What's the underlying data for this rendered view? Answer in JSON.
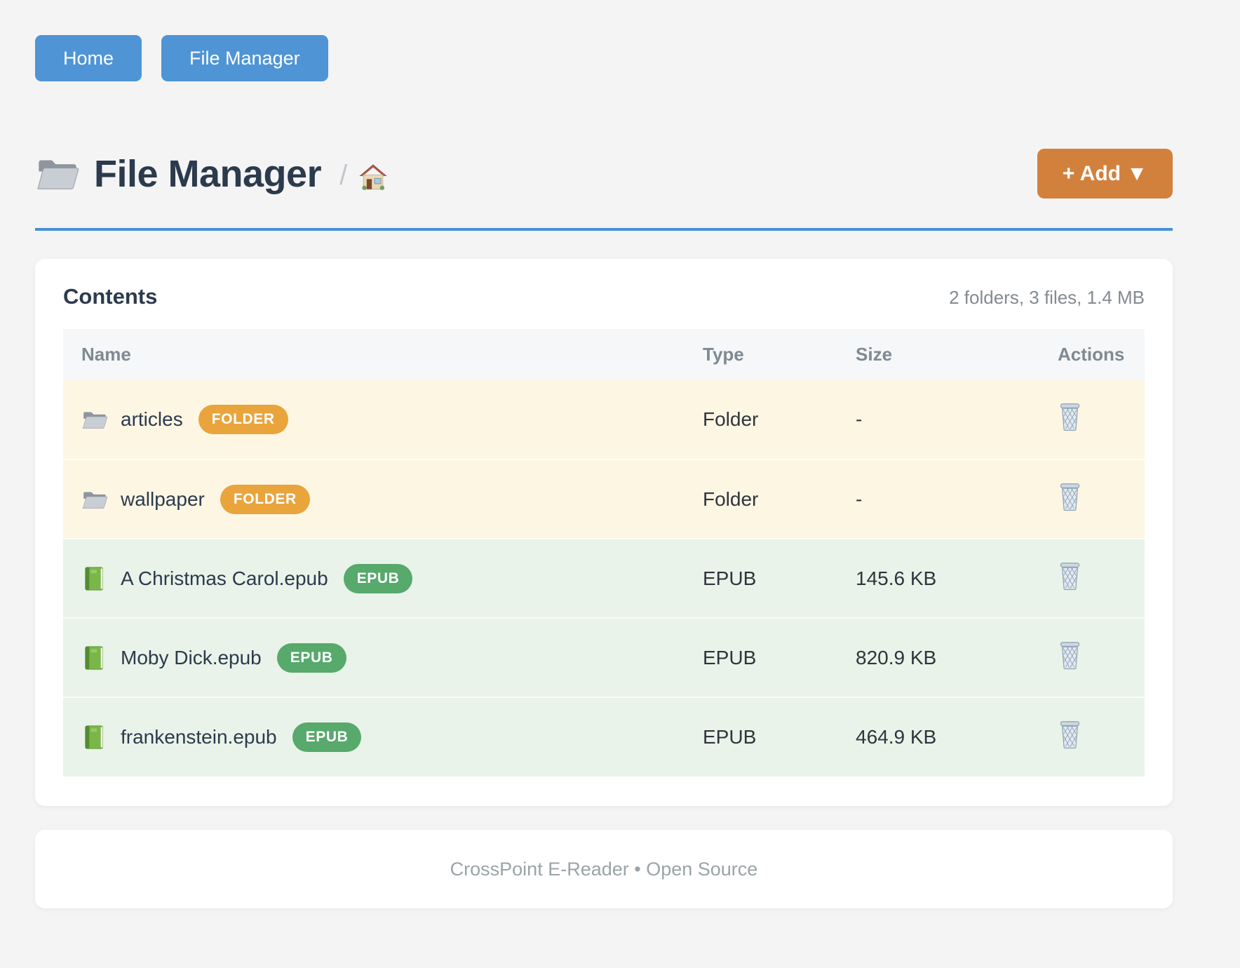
{
  "nav": {
    "home": "Home",
    "file_manager": "File Manager"
  },
  "header": {
    "title": "File Manager",
    "breadcrumb_separator": "/",
    "add_button": "+ Add ▼"
  },
  "contents": {
    "title": "Contents",
    "summary": "2 folders, 3 files, 1.4 MB",
    "columns": [
      "Name",
      "Type",
      "Size",
      "Actions"
    ],
    "rows": [
      {
        "name": "articles",
        "badge": "FOLDER",
        "type": "Folder",
        "size": "-"
      },
      {
        "name": "wallpaper",
        "badge": "FOLDER",
        "type": "Folder",
        "size": "-"
      },
      {
        "name": "A Christmas Carol.epub",
        "badge": "EPUB",
        "type": "EPUB",
        "size": "145.6 KB"
      },
      {
        "name": "Moby Dick.epub",
        "badge": "EPUB",
        "type": "EPUB",
        "size": "820.9 KB"
      },
      {
        "name": "frankenstein.epub",
        "badge": "EPUB",
        "type": "EPUB",
        "size": "464.9 KB"
      }
    ]
  },
  "footer": "CrossPoint E-Reader • Open Source",
  "icons": {
    "title": "folder-icon",
    "breadcrumb": "home-icon",
    "folder_row": "folder-icon",
    "epub_row": "book-icon",
    "row_action": "trash-icon"
  },
  "colors": {
    "nav_button": "#4f94d4",
    "title_underline": "#4690d4",
    "add_button": "#d2813d",
    "folder_badge": "#e9a43c",
    "epub_badge": "#57a96c",
    "folder_row_bg": "#fdf6e3",
    "epub_row_bg": "#e9f3e9",
    "page_bg": "#f4f4f5"
  }
}
